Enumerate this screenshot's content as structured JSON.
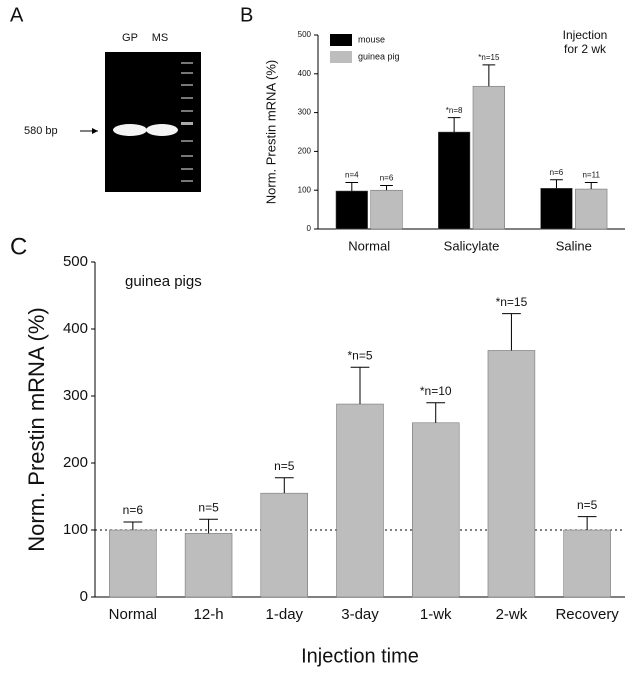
{
  "gel": {
    "panel": "A",
    "lanes": [
      "GP",
      "MS"
    ],
    "marker": "580 bp"
  },
  "chart_data": [
    {
      "panel": "B",
      "type": "bar",
      "ylabel": "Norm. Prestin mRNA (%)",
      "categories": [
        "Normal",
        "Salicylate",
        "Saline"
      ],
      "series": [
        {
          "name": "mouse",
          "color": "#000000",
          "values": [
            98,
            250,
            105
          ],
          "errors": [
            22,
            37,
            22
          ],
          "n_labels": [
            "n=4",
            "*n=8",
            "n=6"
          ]
        },
        {
          "name": "guinea pig",
          "color": "#bdbdbd",
          "values": [
            100,
            368,
            103
          ],
          "errors": [
            12,
            55,
            17
          ],
          "n_labels": [
            "n=6",
            "*n=15",
            "n=11"
          ]
        }
      ],
      "annotation": [
        "Injection",
        "for 2 wk"
      ],
      "ylim": [
        0,
        500
      ],
      "yticks": [
        0,
        100,
        200,
        300,
        400,
        500
      ],
      "legend": "upper left"
    },
    {
      "panel": "C",
      "type": "bar",
      "ylabel": "Norm. Prestin mRNA (%)",
      "xlabel": "Injection time",
      "categories": [
        "Normal",
        "12-h",
        "1-day",
        "3-day",
        "1-wk",
        "2-wk",
        "Recovery"
      ],
      "values": [
        100,
        95,
        155,
        288,
        260,
        368,
        100
      ],
      "errors": [
        12,
        21,
        23,
        55,
        30,
        55,
        20
      ],
      "n_labels": [
        "n=6",
        "n=5",
        "n=5",
        "*n=5",
        "*n=10",
        "*n=15",
        "n=5"
      ],
      "color": "#bdbdbd",
      "annotation": "guinea pigs",
      "reference_line": 100,
      "ylim": [
        0,
        500
      ],
      "yticks": [
        0,
        100,
        200,
        300,
        400,
        500
      ]
    }
  ]
}
